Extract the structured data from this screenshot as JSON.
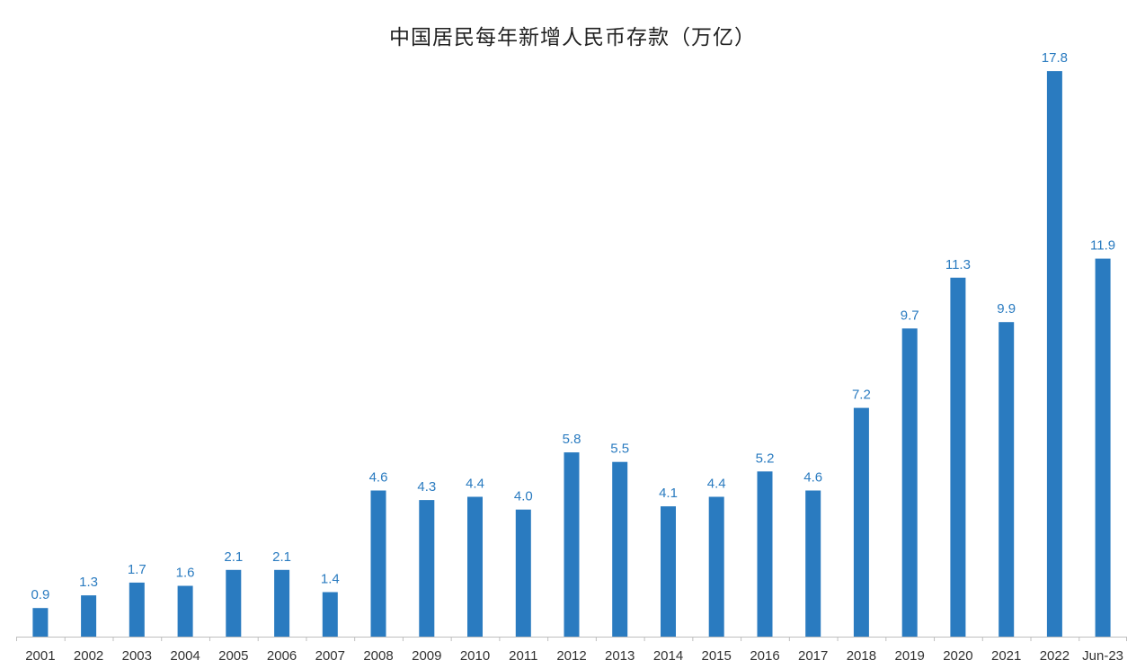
{
  "chart_data": {
    "type": "bar",
    "title": "中国居民每年新增人民币存款（万亿）",
    "xlabel": "",
    "ylabel": "",
    "categories": [
      "2001",
      "2002",
      "2003",
      "2004",
      "2005",
      "2006",
      "2007",
      "2008",
      "2009",
      "2010",
      "2011",
      "2012",
      "2013",
      "2014",
      "2015",
      "2016",
      "2017",
      "2018",
      "2019",
      "2020",
      "2021",
      "2022",
      "Jun-23"
    ],
    "values": [
      0.9,
      1.3,
      1.7,
      1.6,
      2.1,
      2.1,
      1.4,
      4.6,
      4.3,
      4.4,
      4.0,
      5.8,
      5.5,
      4.1,
      4.4,
      5.2,
      4.6,
      7.2,
      9.7,
      11.3,
      9.9,
      17.8,
      11.9
    ],
    "value_labels": [
      "0.9",
      "1.3",
      "1.7",
      "1.6",
      "2.1",
      "2.1",
      "1.4",
      "4.6",
      "4.3",
      "4.4",
      "4.0",
      "5.8",
      "5.5",
      "4.1",
      "4.4",
      "5.2",
      "4.6",
      "7.2",
      "9.7",
      "11.3",
      "9.9",
      "17.8",
      "11.9"
    ],
    "ylim": [
      0,
      18
    ],
    "grid": false,
    "legend": "none",
    "bar_color": "#2A7BC0",
    "label_color": "#2A7BC0",
    "axis_color": "#BFBFBF"
  }
}
